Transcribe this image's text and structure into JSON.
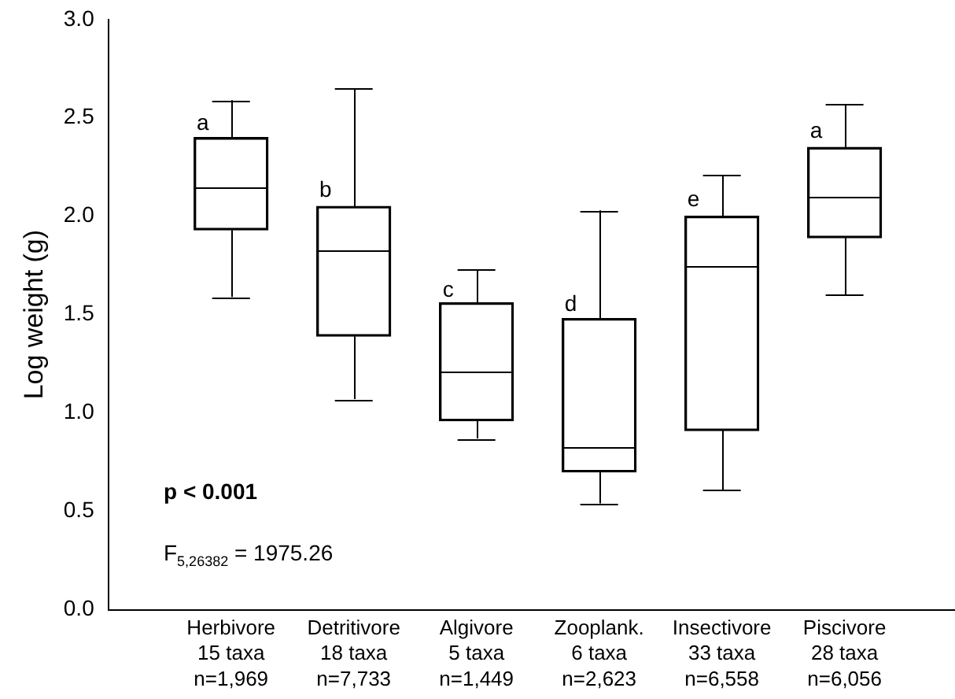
{
  "chart_data": {
    "type": "box",
    "ylabel": "Log weight (g)",
    "categories": [
      "Herbivore\n15 taxa\nn=1,969",
      "Detritivore\n18 taxa\nn=7,733",
      "Algivore\n5 taxa\nn=1,449",
      "Zooplank.\n6 taxa\nn=2,623",
      "Insectivore\n33 taxa\nn=6,558",
      "Piscivore\n28 taxa\nn=6,056"
    ],
    "boxes": [
      {
        "low": 1.59,
        "q1": 1.93,
        "median": 2.15,
        "q3": 2.4,
        "high": 2.59
      },
      {
        "low": 1.07,
        "q1": 1.39,
        "median": 1.83,
        "q3": 2.05,
        "high": 2.65
      },
      {
        "low": 0.87,
        "q1": 0.96,
        "median": 1.21,
        "q3": 1.56,
        "high": 1.73
      },
      {
        "low": 0.54,
        "q1": 0.7,
        "median": 0.83,
        "q3": 1.48,
        "high": 2.03
      },
      {
        "low": 0.61,
        "q1": 0.91,
        "median": 1.75,
        "q3": 2.0,
        "high": 2.21
      },
      {
        "low": 1.6,
        "q1": 1.89,
        "median": 2.1,
        "q3": 2.35,
        "high": 2.57
      }
    ],
    "ylim": [
      0,
      3
    ],
    "yticks": [
      {
        "value": 0,
        "label": "0.0"
      },
      {
        "value": 0.5,
        "label": "0.5"
      },
      {
        "value": 1,
        "label": "1.0"
      },
      {
        "value": 1.5,
        "label": "1.5"
      },
      {
        "value": 2,
        "label": "2.0"
      },
      {
        "value": 2.5,
        "label": "2.5"
      },
      {
        "value": 3,
        "label": "3.0"
      }
    ],
    "grid": false,
    "legend": false,
    "annotations": [
      {
        "text": "a",
        "x": "Herbivore\n15 taxa\nn=1,969",
        "y": 2.47
      },
      {
        "text": "b",
        "x": "Detritivore\n18 taxa\nn=7,733",
        "y": 2.13
      },
      {
        "text": "c",
        "x": "Algivore\n5 taxa\nn=1,449",
        "y": 1.62
      },
      {
        "text": "d",
        "x": "Zooplank.\n6 taxa\nn=2,623",
        "y": 1.55
      },
      {
        "text": "e",
        "x": "Insectivore\n33 taxa\nn=6,558",
        "y": 2.08
      },
      {
        "text": "a",
        "x": "Piscivore\n28 taxa\nn=6,056",
        "y": 2.43
      },
      "p < 0.001",
      "F$_{5,26382}$ = 1975.26"
    ]
  }
}
